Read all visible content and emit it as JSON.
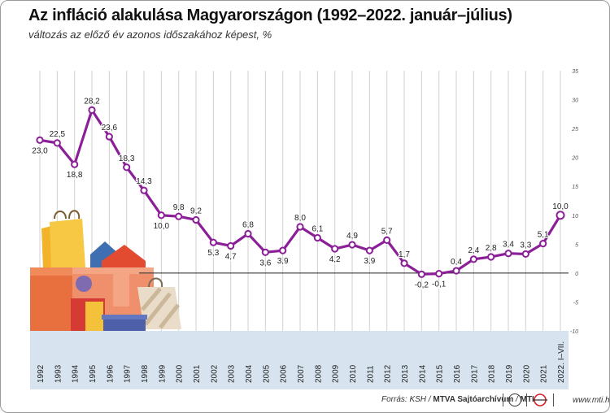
{
  "chart_data": {
    "type": "line",
    "title": "Az infláció alakulása Magyarországon (1992–2022. január–július)",
    "subtitle": "változás az előző év azonos időszakához képest, %",
    "categories": [
      "1992",
      "1993",
      "1994",
      "1995",
      "1996",
      "1997",
      "1998",
      "1999",
      "2000",
      "2001",
      "2002",
      "2003",
      "2004",
      "2005",
      "2006",
      "2007",
      "2008",
      "2009",
      "2010",
      "2011",
      "2012",
      "2013",
      "2014",
      "2015",
      "2016",
      "2017",
      "2018",
      "2019",
      "2020",
      "2021",
      "2022. I–VII."
    ],
    "values": [
      23.0,
      22.5,
      18.8,
      28.2,
      23.6,
      18.3,
      14.3,
      10.0,
      9.8,
      9.2,
      5.3,
      4.7,
      6.8,
      3.6,
      3.9,
      8.0,
      6.1,
      4.2,
      4.9,
      3.9,
      5.7,
      1.7,
      -0.2,
      -0.1,
      0.4,
      2.4,
      2.8,
      3.4,
      3.3,
      5.1,
      10.0
    ],
    "value_labels": [
      "23,0",
      "22,5",
      "18,8",
      "28,2",
      "23,6",
      "18,3",
      "14,3",
      "10,0",
      "9,8",
      "9,2",
      "5,3",
      "4,7",
      "6,8",
      "3,6",
      "3,9",
      "8,0",
      "6,1",
      "4,2",
      "4,9",
      "3,9",
      "5,7",
      "1,7",
      "-0,2",
      "-0,1",
      "0,4",
      "2,4",
      "2,8",
      "3,4",
      "3,3",
      "5,1",
      "10,0"
    ],
    "ylim": [
      -10,
      35
    ],
    "yticks": [
      "-10",
      "-5",
      "0",
      "5",
      "10",
      "15",
      "20",
      "25",
      "30",
      "35"
    ],
    "grid": true,
    "line_color": "#8b1f97"
  },
  "footer": {
    "source_prefix": "Forrás: KSH / ",
    "archive": "MTVA Sajtóarchívum",
    "slash": " / ",
    "agency": "MTI",
    "url": "www.mti.hu"
  }
}
